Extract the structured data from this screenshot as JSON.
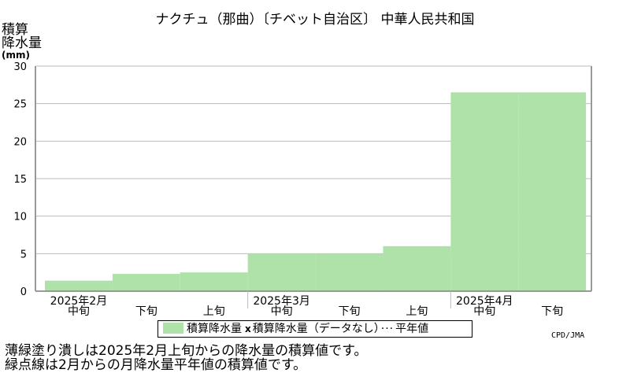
{
  "title": "ナクチュ（那曲）〔チベット自治区〕 中華人民共和国",
  "ylabel_lines": [
    "積算",
    "降水量"
  ],
  "ylabel_unit": "(mm)",
  "legend": {
    "bar_label": "積算降水量",
    "nodata_marker": "x",
    "nodata_label": "積算降水量（データなし）",
    "normal_marker": "···",
    "normal_label": "平年値"
  },
  "credit": "CPD/JMA",
  "notes": [
    "薄緑塗り潰しは2025年2月上旬からの降水量の積算値です。",
    "緑点線は2月からの月降水量平年値の積算値です。"
  ],
  "colors": {
    "bar": "#aee2a8",
    "normal_line": "#2e8b2e",
    "grid": "#bbbbbb"
  },
  "chart_data": {
    "type": "bar",
    "categories": [
      "2025年2月中旬",
      "2025年2月下旬",
      "2025年3月上旬",
      "2025年3月中旬",
      "2025年3月下旬",
      "2025年4月上旬",
      "2025年4月中旬",
      "2025年4月下旬"
    ],
    "values": [
      1.4,
      2.3,
      2.5,
      5.0,
      5.0,
      6.0,
      26.5,
      26.5
    ],
    "ylim": [
      0,
      30
    ],
    "yticks": [
      0,
      5,
      10,
      15,
      20,
      25,
      30
    ],
    "grid": true,
    "legend_position": "bottom",
    "x_tick_labels": [
      "中旬",
      "下旬",
      "上旬",
      "中旬",
      "下旬",
      "上旬",
      "中旬",
      "下旬"
    ],
    "month_labels": [
      {
        "label": "2025年2月",
        "index": 0
      },
      {
        "label": "2025年3月",
        "index": 3
      },
      {
        "label": "2025年4月",
        "index": 6
      }
    ],
    "x_title_hidden_note": ""
  }
}
